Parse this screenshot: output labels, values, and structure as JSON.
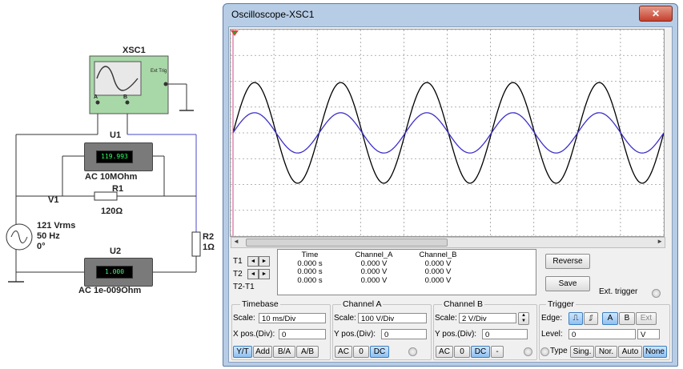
{
  "schematic": {
    "scope_label": "XSC1",
    "scope_ext_trig": "Ext Trig",
    "scope_ch_a": "A",
    "scope_ch_b": "B",
    "u1_label": "U1",
    "u1_display": "119.993",
    "u1_desc": "AC  10MOhm",
    "r1_label": "R1",
    "r1_value": "120Ω",
    "v1_label": "V1",
    "source_line1": "121 Vrms",
    "source_line2": "50 Hz",
    "source_line3": "0°",
    "u2_label": "U2",
    "u2_display": "1.000",
    "u2_desc": "AC  1e-009Ohm",
    "r2_label": "R2",
    "r2_value": "1Ω"
  },
  "window": {
    "title": "Oscilloscope-XSC1",
    "close_label": "✕"
  },
  "waveform": {
    "cycles": 5,
    "channel_a_amplitude_div": 1.0,
    "channel_b_amplitude_div": 0.4,
    "channel_a_color": "#000000",
    "channel_b_color": "#3b2fc9"
  },
  "readout": {
    "t1_label": "T1",
    "t2_label": "T2",
    "t2t1_label": "T2-T1",
    "headers": {
      "time": "Time",
      "channel_a": "Channel_A",
      "channel_b": "Channel_B"
    },
    "time": [
      "0.000 s",
      "0.000 s",
      "0.000 s"
    ],
    "channel_a": [
      "0.000 V",
      "0.000 V",
      "0.000 V"
    ],
    "channel_b": [
      "0.000 V",
      "0.000 V",
      "0.000 V"
    ]
  },
  "buttons": {
    "reverse": "Reverse",
    "save": "Save",
    "ext_trigger": "Ext. trigger"
  },
  "timebase": {
    "title": "Timebase",
    "scale_label": "Scale:",
    "scale_value": "10 ms/Div",
    "xpos_label": "X pos.(Div):",
    "xpos_value": "0",
    "modes": [
      "Y/T",
      "Add",
      "B/A",
      "A/B"
    ]
  },
  "channel_a": {
    "title": "Channel A",
    "scale_label": "Scale:",
    "scale_value": "100  V/Div",
    "ypos_label": "Y pos.(Div):",
    "ypos_value": "0",
    "coupling": [
      "AC",
      "0",
      "DC"
    ]
  },
  "channel_b": {
    "title": "Channel B",
    "scale_label": "Scale:",
    "scale_value": "2  V/Div",
    "ypos_label": "Y pos.(Div):",
    "ypos_value": "0",
    "coupling": [
      "AC",
      "0",
      "DC",
      "-"
    ]
  },
  "trigger": {
    "title": "Trigger",
    "edge_label": "Edge:",
    "level_label": "Level:",
    "level_value": "0",
    "level_unit": "V",
    "source_buttons": [
      "A",
      "B",
      "Ext"
    ],
    "type_label": "Type",
    "types": [
      "Sing.",
      "Nor.",
      "Auto",
      "None"
    ]
  }
}
